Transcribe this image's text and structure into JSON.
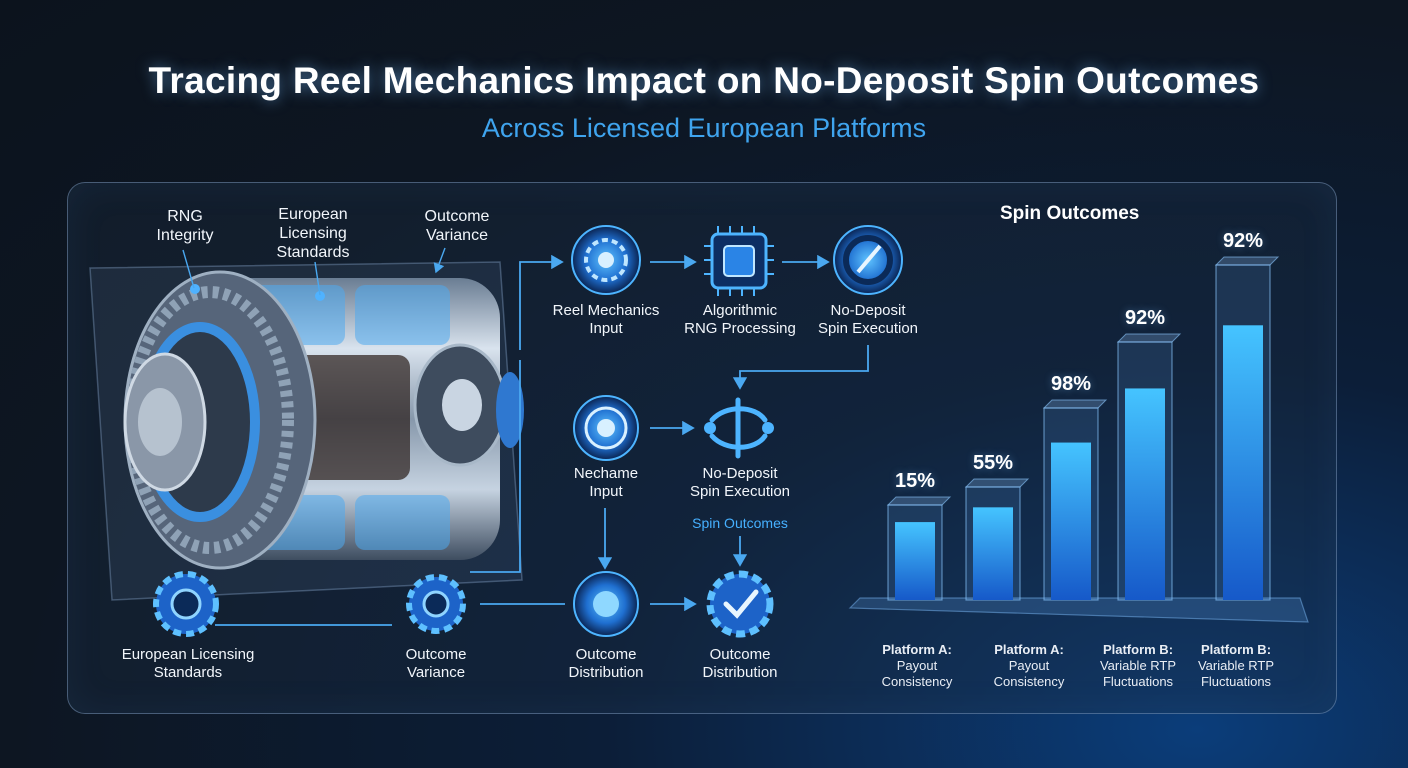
{
  "title": "Tracing Reel Mechanics Impact on No-Deposit Spin Outcomes",
  "subtitle": "Across Licensed European Platforms",
  "reel_labels": {
    "rng": "RNG\nIntegrity",
    "standards": "European\nLicensing\nStandards",
    "variance": "Outcome\nVariance"
  },
  "flow": {
    "reel_input": "Reel Mechanics\nInput",
    "rng_processing": "Algorithmic\nRNG Processing",
    "spin_execution_top": "No-Deposit\nSpin Execution",
    "nechame_input": "Nechame\nInput",
    "spin_execution_mid": "No-Deposit\nSpin Execution",
    "spin_outcomes_label": "Spin Outcomes",
    "licensing": "European Licensing\nStandards",
    "variance": "Outcome\nVariance",
    "distribution_1": "Outcome\nDistribution",
    "distribution_2": "Outcome\nDistribution"
  },
  "colors": {
    "accent": "#46b0ff",
    "bar": "#2e8ef0",
    "panel_border": "#8caad2"
  },
  "chart_data": {
    "type": "bar",
    "title": "Spin Outcomes",
    "categories": [
      {
        "name": "Platform A:",
        "desc": "Payout\nConsistency"
      },
      {
        "name": "Platform A:",
        "desc": "Payout\nConsistency"
      },
      {
        "name": "",
        "desc": ""
      },
      {
        "name": "Platform B:",
        "desc": "Variable RTP\nFluctuations"
      },
      {
        "name": "Platform B:",
        "desc": "Variable RTP\nFluctuations"
      }
    ],
    "values": [
      15,
      55,
      98,
      92,
      92
    ],
    "labels": [
      "15%",
      "55%",
      "98%",
      "92%",
      "92%"
    ],
    "ylim": [
      0,
      100
    ]
  }
}
